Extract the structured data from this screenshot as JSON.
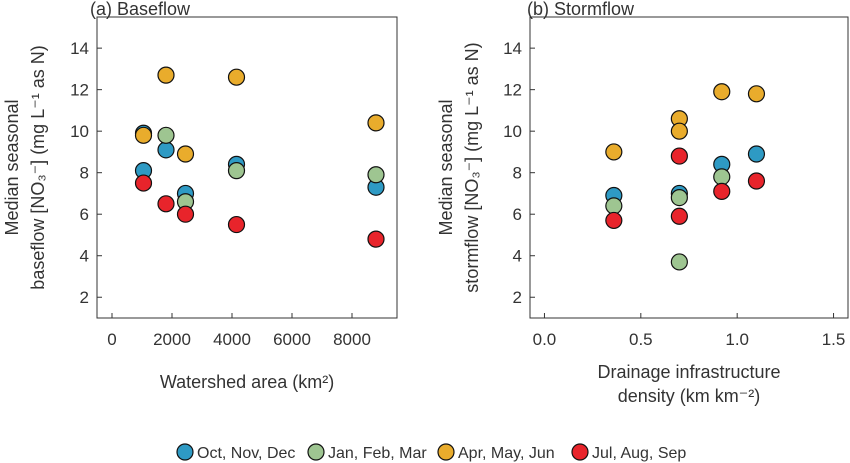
{
  "chart_data": [
    {
      "type": "scatter",
      "title": "(a) Baseflow",
      "xlabel": "Watershed area (km²)",
      "ylabel_lines": [
        "Median seasonal",
        "baseflow [NO₃⁻] (mg L⁻¹ as N)"
      ],
      "xlim": [
        -500,
        9500
      ],
      "ylim": [
        1,
        15.5
      ],
      "xticks": [
        0,
        2000,
        4000,
        6000,
        8000
      ],
      "xtick_labels": [
        "0",
        "2000",
        "4000",
        "6000",
        "8000"
      ],
      "yticks": [
        2,
        4,
        6,
        8,
        10,
        12,
        14
      ],
      "ytick_labels": [
        "2",
        "4",
        "6",
        "8",
        "10",
        "12",
        "14"
      ],
      "grid": false,
      "series": [
        {
          "name": "Oct, Nov, Dec",
          "color": "#2e9ac4",
          "points": [
            [
              1050,
              8.1
            ],
            [
              1800,
              9.1
            ],
            [
              2450,
              7.0
            ],
            [
              4150,
              8.4
            ],
            [
              8800,
              7.3
            ],
            [
              1050,
              9.9
            ]
          ]
        },
        {
          "name": "Jan, Feb, Mar",
          "color": "#9ec591",
          "points": [
            [
              1800,
              9.8
            ],
            [
              2450,
              6.6
            ],
            [
              4150,
              8.1
            ],
            [
              8800,
              7.9
            ]
          ]
        },
        {
          "name": "Apr, May, Jun",
          "color": "#e9ac2c",
          "points": [
            [
              1050,
              9.8
            ],
            [
              1800,
              12.7
            ],
            [
              2450,
              8.9
            ],
            [
              4150,
              12.6
            ],
            [
              8800,
              10.4
            ]
          ]
        },
        {
          "name": "Jul, Aug, Sep",
          "color": "#e8242b",
          "points": [
            [
              1050,
              7.5
            ],
            [
              1800,
              6.5
            ],
            [
              2450,
              6.0
            ],
            [
              4150,
              5.5
            ],
            [
              8800,
              4.8
            ]
          ]
        }
      ]
    },
    {
      "type": "scatter",
      "title": "(b) Stormflow",
      "xlabel_lines": [
        "Drainage infrastructure",
        "density (km km⁻²)"
      ],
      "ylabel_lines": [
        "Median seasonal",
        "stormflow [NO₃⁻] (mg L⁻¹ as N)"
      ],
      "xlim": [
        -0.075,
        1.575
      ],
      "ylim": [
        1,
        15.5
      ],
      "xticks": [
        0.0,
        0.5,
        1.0,
        1.5
      ],
      "xtick_labels": [
        "0.0",
        "0.5",
        "1.0",
        "1.5"
      ],
      "yticks": [
        2,
        4,
        6,
        8,
        10,
        12,
        14
      ],
      "ytick_labels": [
        "2",
        "4",
        "6",
        "8",
        "10",
        "12",
        "14"
      ],
      "grid": false,
      "series": [
        {
          "name": "Oct, Nov, Dec",
          "color": "#2e9ac4",
          "points": [
            [
              0.36,
              6.9
            ],
            [
              0.7,
              7.0
            ],
            [
              0.92,
              8.4
            ],
            [
              1.1,
              8.9
            ]
          ]
        },
        {
          "name": "Jan, Feb, Mar",
          "color": "#9ec591",
          "points": [
            [
              0.36,
              6.4
            ],
            [
              0.7,
              6.8
            ],
            [
              0.7,
              3.7
            ],
            [
              0.92,
              7.8
            ]
          ]
        },
        {
          "name": "Apr, May, Jun",
          "color": "#e9ac2c",
          "points": [
            [
              0.36,
              9.0
            ],
            [
              0.7,
              10.6
            ],
            [
              0.7,
              10.0
            ],
            [
              0.92,
              11.9
            ],
            [
              1.1,
              11.8
            ]
          ]
        },
        {
          "name": "Jul, Aug, Sep",
          "color": "#e8242b",
          "points": [
            [
              0.36,
              5.7
            ],
            [
              0.7,
              8.8
            ],
            [
              0.7,
              5.9
            ],
            [
              0.92,
              7.1
            ],
            [
              1.1,
              7.6
            ]
          ]
        }
      ]
    }
  ],
  "legend": {
    "placement": "bottom-center",
    "items": [
      {
        "label": "Oct, Nov, Dec",
        "color": "#2e9ac4"
      },
      {
        "label": "Jan, Feb, Mar",
        "color": "#9ec591"
      },
      {
        "label": "Apr, May, Jun",
        "color": "#e9ac2c"
      },
      {
        "label": "Jul, Aug, Sep",
        "color": "#e8242b"
      }
    ]
  }
}
